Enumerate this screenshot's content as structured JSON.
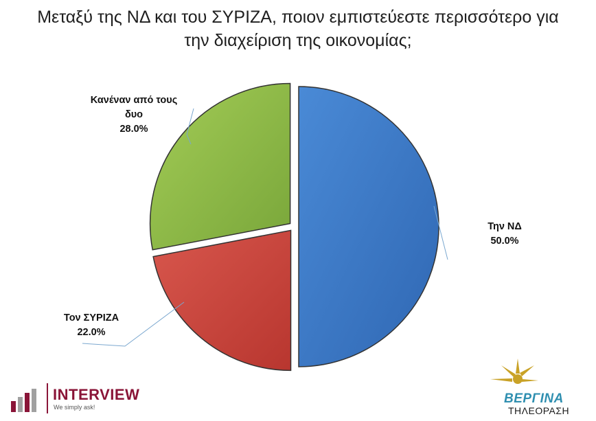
{
  "chart_data": {
    "type": "pie",
    "title_lines": [
      "Μεταξύ της ΝΔ και του ΣΥΡΙΖΑ, ποιον εμπιστεύεστε περισσότερο για",
      "την διαχείριση της οικονομίας;"
    ],
    "slices": [
      {
        "name": "Την ΝΔ",
        "value": 50.0,
        "display": "50.0%",
        "color": "#3a78c6",
        "label_lines": [
          "Την ΝΔ"
        ]
      },
      {
        "name": "Τον ΣΥΡΙΖΑ",
        "value": 22.0,
        "display": "22.0%",
        "color": "#c9443c",
        "label_lines": [
          "Τον ΣΥΡΙΖΑ"
        ]
      },
      {
        "name": "Κανέναν από τους δυο",
        "value": 28.0,
        "display": "28.0%",
        "color": "#8cb945",
        "label_lines": [
          "Κανέναν από τους",
          "δυο"
        ]
      }
    ],
    "start_angle": "12 o'clock",
    "direction": "clockwise",
    "exploded": true,
    "legend": "none"
  },
  "logos": {
    "interview": {
      "name": "INTERVIEW",
      "tagline": "We simply ask!"
    },
    "vergina": {
      "name": "ΒΕΡΓΙΝΑ",
      "subtitle": "ΤΗΛΕΟΡΑΣΗ"
    }
  }
}
